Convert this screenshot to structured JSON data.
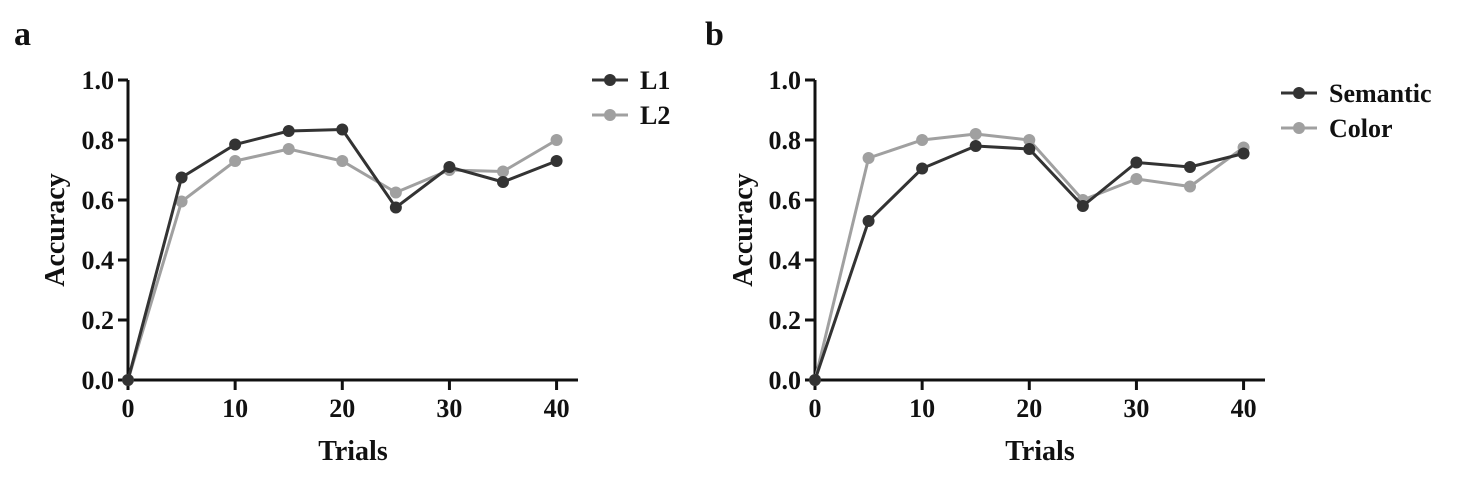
{
  "chart_data": [
    {
      "panel": "a",
      "type": "line",
      "xlabel": "Trials",
      "ylabel": "Accuracy",
      "xlim": [
        0,
        42
      ],
      "ylim": [
        0,
        1.0
      ],
      "xticks": [
        0,
        10,
        20,
        30,
        40
      ],
      "yticks": [
        "0.0",
        "0.2",
        "0.4",
        "0.6",
        "0.8",
        "1.0"
      ],
      "legend_position": "top-right",
      "x": [
        0,
        5,
        10,
        15,
        20,
        25,
        30,
        35,
        40
      ],
      "series": [
        {
          "name": "L1",
          "color": "#333333",
          "values": [
            0.0,
            0.675,
            0.785,
            0.83,
            0.835,
            0.575,
            0.71,
            0.66,
            0.73
          ]
        },
        {
          "name": "L2",
          "color": "#a0a0a0",
          "values": [
            0.0,
            0.595,
            0.73,
            0.77,
            0.73,
            0.625,
            0.7,
            0.695,
            0.8
          ]
        }
      ]
    },
    {
      "panel": "b",
      "type": "line",
      "xlabel": "Trials",
      "ylabel": "Accuracy",
      "xlim": [
        0,
        42
      ],
      "ylim": [
        0,
        1.0
      ],
      "xticks": [
        0,
        10,
        20,
        30,
        40
      ],
      "yticks": [
        "0.0",
        "0.2",
        "0.4",
        "0.6",
        "0.8",
        "1.0"
      ],
      "legend_position": "top-right",
      "x": [
        0,
        5,
        10,
        15,
        20,
        25,
        30,
        35,
        40
      ],
      "series": [
        {
          "name": "Semantic",
          "color": "#333333",
          "values": [
            0.0,
            0.53,
            0.705,
            0.78,
            0.77,
            0.58,
            0.725,
            0.71,
            0.755
          ]
        },
        {
          "name": "Color",
          "color": "#a0a0a0",
          "values": [
            0.0,
            0.74,
            0.8,
            0.82,
            0.8,
            0.6,
            0.67,
            0.645,
            0.775
          ]
        }
      ]
    }
  ]
}
